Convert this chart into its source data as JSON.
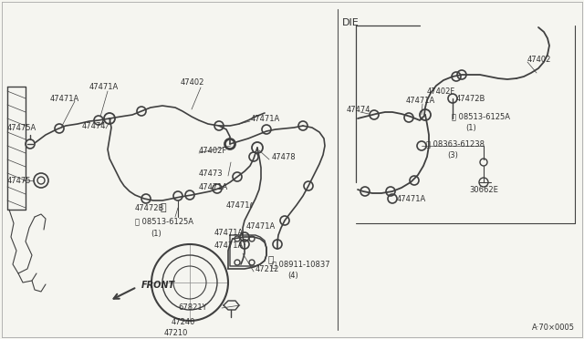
{
  "bg_color": "#f5f5f0",
  "line_color": "#404040",
  "text_color": "#303030",
  "fig_width": 6.4,
  "fig_height": 3.72,
  "dpi": 100,
  "diagram_note": "A·70×0005",
  "die_label": "DIE",
  "front_label": "FRONT",
  "border_color": "#c0c0c0"
}
